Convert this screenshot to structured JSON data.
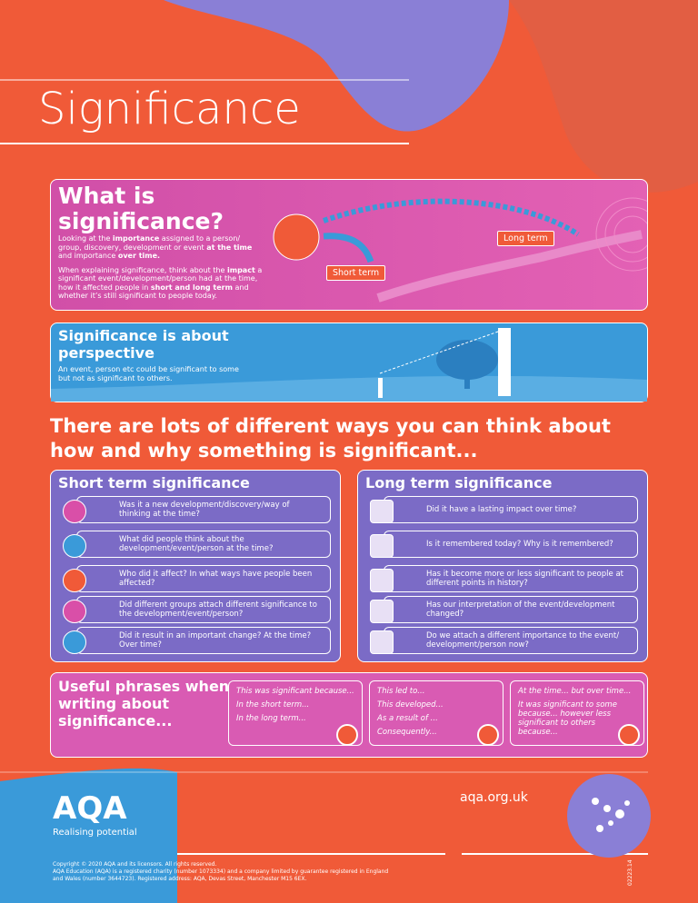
{
  "header": {
    "title": "Significance"
  },
  "what_is": {
    "heading": "What is significance?",
    "paragraphs": [
      [
        "Looking at the ",
        "importance",
        " assigned to a person/ group, discovery, development or event ",
        "at the time",
        " and importance ",
        "over time."
      ],
      [
        "When explaining significance, think about the ",
        "impact",
        " a significant event/development/person had at the time, how it affected people in ",
        "short and long term",
        " and whether it’s still significant to people today."
      ]
    ],
    "short_label": "Short term",
    "long_label": "Long term"
  },
  "perspective": {
    "heading": "Significance is about perspective",
    "text": "An event, person etc could be significant to some but not as significant to others."
  },
  "ways_heading": "There are lots of different ways you can think about how and why something is significant...",
  "short_term": {
    "title": "Short term significance",
    "items": [
      "Was it a new development/discovery/way of thinking at the time?",
      "What did people think about the development/event/person at the time?",
      "Who did it affect? In what ways have people been affected?",
      "Did different groups attach different significance to the development/event/person?",
      "Did it result in an important change? At the time? Over time?"
    ]
  },
  "long_term": {
    "title": "Long term significance",
    "items": [
      "Did it have a lasting impact over time?",
      "Is it remembered today? Why is it remembered?",
      "Has it become more or less significant to people at different points in history?",
      "Has our interpretation of the event/development changed?",
      "Do we attach a different importance to the event/ development/person now?"
    ]
  },
  "phrases": {
    "heading": "Useful phrases when writing about significance...",
    "boxes": [
      [
        "This was significant because...",
        "In the short term...",
        "In the long term..."
      ],
      [
        "This led to...",
        "This developed...",
        "As a result of ...",
        "Consequently..."
      ],
      [
        "At the time... but over time...",
        "It was significant to some because... however less significant to others because..."
      ]
    ]
  },
  "footer": {
    "logo": "AQA",
    "tagline": "Realising potential",
    "url": "aqa.org.uk",
    "copyright": [
      "Copyright © 2020 AQA and its licensors. All rights reserved.",
      "AQA Education (AQA) is a registered charity (number 1073334) and a company limited by guarantee registered in England and Wales (number 3644723). Registered address: AQA, Devas Street, Manchester M15 6EX."
    ],
    "code": "02223.14"
  }
}
